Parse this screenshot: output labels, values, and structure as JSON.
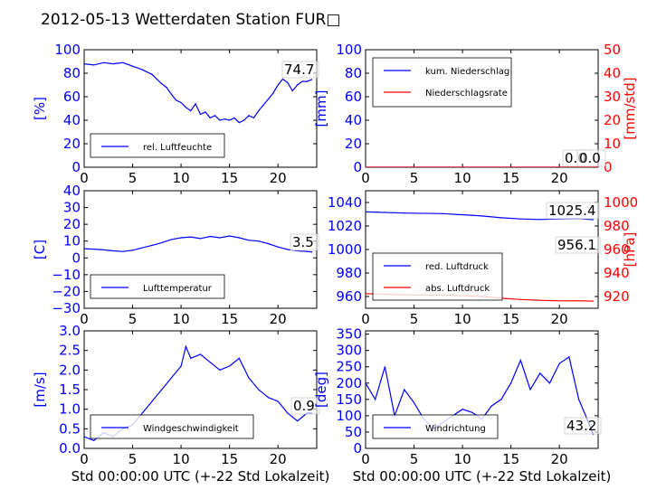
{
  "title": "2012-05-13 Wetterdaten Station FUR□",
  "colors": {
    "axis_left": "#0000ff",
    "axis_right": "#ff0000",
    "series_blue": "#0000ff",
    "series_red": "#ff0000",
    "frame": "#000000"
  },
  "chart_data": [
    {
      "id": "humidity",
      "type": "line",
      "xlim": [
        0,
        24
      ],
      "ylim": [
        0,
        100
      ],
      "xticks": [
        "0",
        "5",
        "10",
        "15",
        "20"
      ],
      "yticks": [
        "0",
        "20",
        "40",
        "60",
        "80",
        "100"
      ],
      "ylabel": "[%]",
      "xlabel": "",
      "legend_position": "lower-left",
      "legend": [
        "rel. Luftfeuchte"
      ],
      "annotations": [
        "74.7"
      ],
      "series": [
        {
          "name": "rel. Luftfeuchte",
          "color": "blue",
          "x": [
            0,
            1,
            2,
            3,
            4,
            5,
            6,
            7,
            8,
            8.5,
            9,
            9.5,
            10,
            10.5,
            11,
            11.5,
            12,
            12.5,
            13,
            13.5,
            14,
            14.5,
            15,
            15.5,
            16,
            16.5,
            17,
            17.5,
            18,
            18.5,
            19,
            19.5,
            20,
            20.5,
            21,
            21.5,
            22,
            22.5,
            23,
            23.5
          ],
          "y": [
            88,
            87,
            89,
            88,
            89,
            86,
            83,
            79,
            71,
            68,
            62,
            57,
            55,
            51,
            48,
            54,
            45,
            47,
            42,
            44,
            40,
            41,
            40,
            42,
            38,
            40,
            44,
            42,
            48,
            53,
            58,
            63,
            70,
            75,
            72,
            65,
            70,
            73,
            73,
            74.7
          ]
        }
      ]
    },
    {
      "id": "precipitation",
      "type": "line",
      "xlim": [
        0,
        24
      ],
      "ylim": [
        0,
        100
      ],
      "ylim_right": [
        0,
        50
      ],
      "xticks": [
        "0",
        "5",
        "10",
        "15",
        "20"
      ],
      "yticks": [
        "0",
        "20",
        "40",
        "60",
        "80",
        "100"
      ],
      "yticks_right": [
        "0",
        "10",
        "20",
        "30",
        "40",
        "50"
      ],
      "ylabel": "[mm]",
      "ylabel_right": "[mm/std]",
      "legend_position": "upper-left",
      "legend": [
        "kum. Niederschlag",
        "Niederschlagsrate"
      ],
      "annotations": [
        "0.0",
        "0.0"
      ],
      "series": [
        {
          "name": "kum. Niederschlag",
          "color": "blue",
          "x": [
            0,
            24
          ],
          "y": [
            0,
            0
          ]
        },
        {
          "name": "Niederschlagsrate",
          "color": "red",
          "x": [
            0,
            24
          ],
          "y": [
            0,
            0
          ]
        }
      ]
    },
    {
      "id": "temperature",
      "type": "line",
      "xlim": [
        0,
        24
      ],
      "ylim": [
        -30,
        40
      ],
      "xticks": [
        "0",
        "5",
        "10",
        "15",
        "20"
      ],
      "yticks": [
        "−30",
        "−20",
        "−10",
        "0",
        "10",
        "20",
        "30",
        "40"
      ],
      "ylabel": "[C]",
      "legend_position": "lower-left",
      "legend": [
        "Lufttemperatur"
      ],
      "annotations": [
        "3.5"
      ],
      "series": [
        {
          "name": "Lufttemperatur",
          "color": "blue",
          "x": [
            0,
            1,
            2,
            3,
            4,
            5,
            6,
            7,
            8,
            9,
            10,
            11,
            12,
            13,
            14,
            15,
            16,
            17,
            18,
            19,
            20,
            21,
            22,
            23,
            23.5
          ],
          "y": [
            5.5,
            5.2,
            4.8,
            4.2,
            3.8,
            4.5,
            6,
            7.5,
            9,
            11,
            12,
            12.5,
            11.5,
            12.8,
            12,
            13,
            12,
            10.5,
            10,
            8.5,
            6.5,
            5,
            4.2,
            3.8,
            3.5
          ]
        }
      ]
    },
    {
      "id": "pressure",
      "type": "line",
      "xlim": [
        0,
        24
      ],
      "ylim": [
        950,
        1050
      ],
      "ylim_right": [
        910,
        1010
      ],
      "xticks": [
        "0",
        "5",
        "10",
        "15",
        "20"
      ],
      "yticks": [
        "960",
        "980",
        "1000",
        "1020",
        "1040"
      ],
      "yticks_right": [
        "920",
        "940",
        "960",
        "980",
        "1000"
      ],
      "ylabel": "",
      "ylabel_right": "[hPa]",
      "legend_position": "lower-left",
      "legend": [
        "red. Luftdruck",
        "abs. Luftdruck"
      ],
      "annotations": [
        "1025.4",
        "956.1"
      ],
      "series": [
        {
          "name": "red. Luftdruck",
          "color": "blue",
          "x": [
            0,
            4,
            8,
            12,
            14,
            16,
            18,
            20,
            22,
            23.5
          ],
          "y": [
            1032,
            1031,
            1030.5,
            1028.5,
            1027,
            1026,
            1025.5,
            1026,
            1026.3,
            1025.4
          ]
        },
        {
          "name": "abs. Luftdruck",
          "color": "red",
          "x": [
            0,
            4,
            8,
            12,
            14,
            16,
            18,
            20,
            22,
            23.5
          ],
          "y": [
            962.5,
            961.5,
            961.2,
            960,
            958.5,
            957.5,
            956.8,
            956.3,
            956.4,
            956.1
          ]
        }
      ]
    },
    {
      "id": "windspeed",
      "type": "line",
      "xlim": [
        0,
        24
      ],
      "ylim": [
        0,
        3
      ],
      "xticks": [
        "0",
        "5",
        "10",
        "15",
        "20"
      ],
      "yticks": [
        "0.0",
        "0.5",
        "1.0",
        "1.5",
        "2.0",
        "2.5",
        "3.0"
      ],
      "ylabel": "[m/s]",
      "xlabel": "Std 00:00:00 UTC (+-22 Std Lokalzeit)",
      "legend_position": "lower-left",
      "legend": [
        "Windgeschwindigkeit"
      ],
      "annotations": [
        "0.9"
      ],
      "series": [
        {
          "name": "Windgeschwindigkeit",
          "color": "blue",
          "x": [
            0,
            1,
            2,
            3,
            4,
            5,
            6,
            7,
            8,
            9,
            10,
            10.5,
            11,
            12,
            13,
            14,
            15,
            16,
            17,
            18,
            19,
            20,
            21,
            22,
            23,
            23.5
          ],
          "y": [
            0.3,
            0.2,
            0.4,
            0.3,
            0.5,
            0.6,
            0.9,
            1.2,
            1.5,
            1.8,
            2.1,
            2.6,
            2.3,
            2.4,
            2.2,
            2.0,
            2.1,
            2.3,
            1.8,
            1.5,
            1.3,
            1.2,
            0.9,
            0.7,
            0.9,
            0.9
          ]
        }
      ]
    },
    {
      "id": "winddirection",
      "type": "line",
      "xlim": [
        0,
        24
      ],
      "ylim": [
        0,
        360
      ],
      "xticks": [
        "0",
        "5",
        "10",
        "15",
        "20"
      ],
      "yticks": [
        "0",
        "50",
        "100",
        "150",
        "200",
        "250",
        "300",
        "350"
      ],
      "ylabel": "[deg]",
      "xlabel": "Std 00:00:00 UTC (+-22 Std Lokalzeit)",
      "legend_position": "lower-left",
      "legend": [
        "Windrichtung"
      ],
      "annotations": [
        "43.2"
      ],
      "series": [
        {
          "name": "Windrichtung",
          "color": "blue",
          "x": [
            0,
            1,
            2,
            3,
            4,
            5,
            6,
            7,
            8,
            9,
            10,
            11,
            12,
            13,
            14,
            15,
            16,
            17,
            18,
            19,
            20,
            21,
            22,
            23,
            23.5
          ],
          "y": [
            200,
            150,
            250,
            100,
            180,
            140,
            90,
            60,
            80,
            100,
            120,
            110,
            90,
            130,
            150,
            200,
            270,
            180,
            230,
            200,
            260,
            280,
            150,
            80,
            43.2
          ]
        }
      ]
    }
  ]
}
